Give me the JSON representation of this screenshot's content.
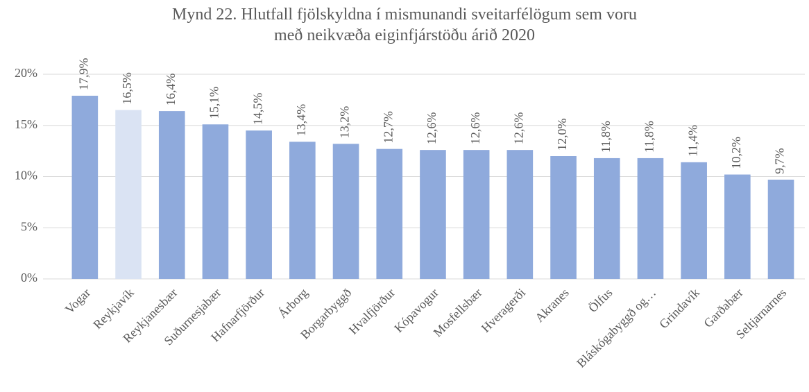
{
  "chart_data": {
    "type": "bar",
    "title": "Mynd 22. Hlutfall fjölskyldna í mismunandi sveitarfélögum sem voru með neikvæða eiginfjárstöðu árið 2020",
    "categories": [
      "Vogar",
      "Reykjavík",
      "Reykjanesbær",
      "Suðurnesjabær",
      "Hafnarfjörður",
      "Árborg",
      "Borgarbyggð",
      "Hvalfjörður",
      "Kópavogur",
      "Mosfellsbær",
      "Hveragerði",
      "Akranes",
      "Ölfus",
      "Bláskógabyggð og…",
      "Grindavík",
      "Garðabær",
      "Seltjarnarnes"
    ],
    "values": [
      17.9,
      16.5,
      16.4,
      15.1,
      14.5,
      13.4,
      13.2,
      12.7,
      12.6,
      12.6,
      12.6,
      12.0,
      11.8,
      11.8,
      11.4,
      10.2,
      9.7
    ],
    "value_labels": [
      "17,9%",
      "16,5%",
      "16,4%",
      "15,1%",
      "14,5%",
      "13,4%",
      "13,2%",
      "12,7%",
      "12,6%",
      "12,6%",
      "12,6%",
      "12,0%",
      "11,8%",
      "11,8%",
      "11,4%",
      "10,2%",
      "9,7%"
    ],
    "colors": [
      "#8faadc",
      "#dae3f3",
      "#8faadc",
      "#8faadc",
      "#8faadc",
      "#8faadc",
      "#8faadc",
      "#8faadc",
      "#8faadc",
      "#8faadc",
      "#8faadc",
      "#8faadc",
      "#8faadc",
      "#8faadc",
      "#8faadc",
      "#8faadc",
      "#8faadc"
    ],
    "ylim": [
      0,
      20
    ],
    "yticks": [
      {
        "value": 0,
        "label": "0%"
      },
      {
        "value": 5,
        "label": "5%"
      },
      {
        "value": 10,
        "label": "10%"
      },
      {
        "value": 15,
        "label": "15%"
      },
      {
        "value": 20,
        "label": "20%"
      }
    ],
    "grid": true
  }
}
